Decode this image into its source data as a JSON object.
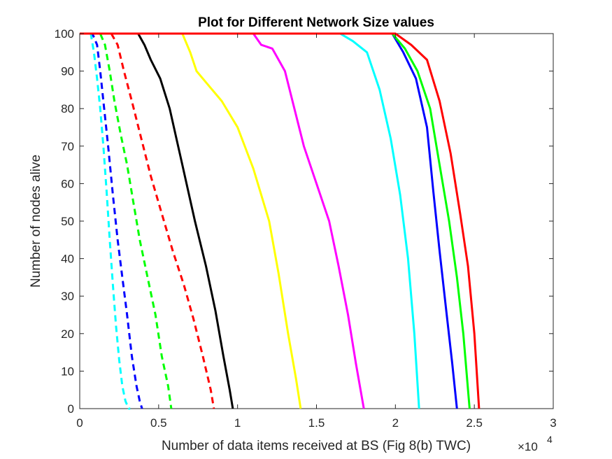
{
  "chart_data": {
    "type": "line",
    "title": "Plot for Different Network Size values",
    "xlabel": "Number of data items received at BS (Fig 8(b) TWC)",
    "ylabel": "Number of nodes alive",
    "x_exponent_label": "×10",
    "x_exponent_power": "4",
    "xlim": [
      0,
      30000
    ],
    "ylim": [
      0,
      100
    ],
    "x_ticks": [
      0,
      5000,
      10000,
      15000,
      20000,
      25000,
      30000
    ],
    "x_tick_labels": [
      "0",
      "0.5",
      "1",
      "1.5",
      "2",
      "2.5",
      "3"
    ],
    "y_ticks": [
      0,
      10,
      20,
      30,
      40,
      50,
      60,
      70,
      80,
      90,
      100
    ],
    "y_tick_labels": [
      "0",
      "10",
      "20",
      "30",
      "40",
      "50",
      "60",
      "70",
      "80",
      "90",
      "100"
    ],
    "grid": false,
    "box": true,
    "series": [
      {
        "color": "#00ffff",
        "dash": true,
        "x": [
          0,
          700,
          900,
          1100,
          1300,
          1500,
          1700,
          1900,
          2100,
          2300,
          2500,
          2700,
          2900,
          3100,
          3200
        ],
        "y": [
          100,
          100,
          95,
          88,
          80,
          70,
          58,
          45,
          33,
          22,
          13,
          6,
          2,
          0,
          0
        ]
      },
      {
        "color": "#0000ff",
        "dash": true,
        "x": [
          0,
          800,
          1100,
          1300,
          1500,
          1800,
          2100,
          2400,
          2700,
          3000,
          3300,
          3600,
          3800,
          3950
        ],
        "y": [
          100,
          100,
          97,
          90,
          82,
          70,
          57,
          45,
          35,
          25,
          14,
          6,
          2,
          0
        ]
      },
      {
        "color": "#00ff00",
        "dash": true,
        "x": [
          0,
          1300,
          1600,
          1900,
          2200,
          2600,
          3000,
          3400,
          3800,
          4300,
          4800,
          5200,
          5600,
          5800
        ],
        "y": [
          100,
          100,
          97,
          90,
          82,
          73,
          65,
          55,
          45,
          35,
          25,
          14,
          6,
          0
        ]
      },
      {
        "color": "#ff0000",
        "dash": true,
        "x": [
          0,
          2000,
          2400,
          2800,
          3300,
          3900,
          4500,
          5200,
          5900,
          6600,
          7200,
          7800,
          8300,
          8500
        ],
        "y": [
          100,
          100,
          97,
          90,
          82,
          72,
          62,
          52,
          42,
          33,
          24,
          14,
          5,
          0
        ]
      },
      {
        "color": "#000000",
        "dash": false,
        "x": [
          0,
          3700,
          4100,
          4500,
          5100,
          5700,
          6500,
          7300,
          8000,
          8600,
          9100,
          9500,
          9700
        ],
        "y": [
          100,
          100,
          97,
          93,
          88,
          80,
          65,
          50,
          38,
          26,
          14,
          5,
          0
        ]
      },
      {
        "color": "#ffff00",
        "dash": false,
        "x": [
          0,
          6500,
          7000,
          7400,
          8000,
          9000,
          10000,
          11000,
          12000,
          12600,
          13200,
          13700,
          14000
        ],
        "y": [
          100,
          100,
          95,
          90,
          87,
          82,
          75,
          64,
          50,
          36,
          20,
          8,
          0
        ]
      },
      {
        "color": "#ff00ff",
        "dash": false,
        "x": [
          0,
          11000,
          11500,
          12200,
          13000,
          13600,
          14200,
          15000,
          15800,
          16400,
          17000,
          17500,
          18000
        ],
        "y": [
          100,
          100,
          97,
          96,
          90,
          80,
          70,
          60,
          50,
          38,
          25,
          12,
          0
        ]
      },
      {
        "color": "#00ffff",
        "dash": false,
        "x": [
          0,
          16500,
          17300,
          18200,
          19000,
          19700,
          20300,
          20800,
          21200,
          21500
        ],
        "y": [
          100,
          100,
          98,
          95,
          85,
          72,
          57,
          40,
          20,
          0
        ]
      },
      {
        "color": "#0000ff",
        "dash": false,
        "x": [
          0,
          19800,
          20500,
          21300,
          22000,
          22400,
          22800,
          23200,
          23600,
          23900
        ],
        "y": [
          100,
          100,
          95,
          88,
          75,
          58,
          42,
          27,
          12,
          0
        ]
      },
      {
        "color": "#00ff00",
        "dash": false,
        "x": [
          0,
          19800,
          20600,
          21400,
          22200,
          22800,
          23400,
          23900,
          24300,
          24700
        ],
        "y": [
          100,
          100,
          96,
          90,
          80,
          65,
          50,
          35,
          20,
          0
        ]
      },
      {
        "color": "#ff0000",
        "dash": false,
        "x": [
          0,
          20000,
          21000,
          22000,
          22800,
          23500,
          24100,
          24600,
          25000,
          25300
        ],
        "y": [
          100,
          100,
          97,
          93,
          82,
          68,
          52,
          38,
          20,
          0
        ]
      }
    ]
  }
}
